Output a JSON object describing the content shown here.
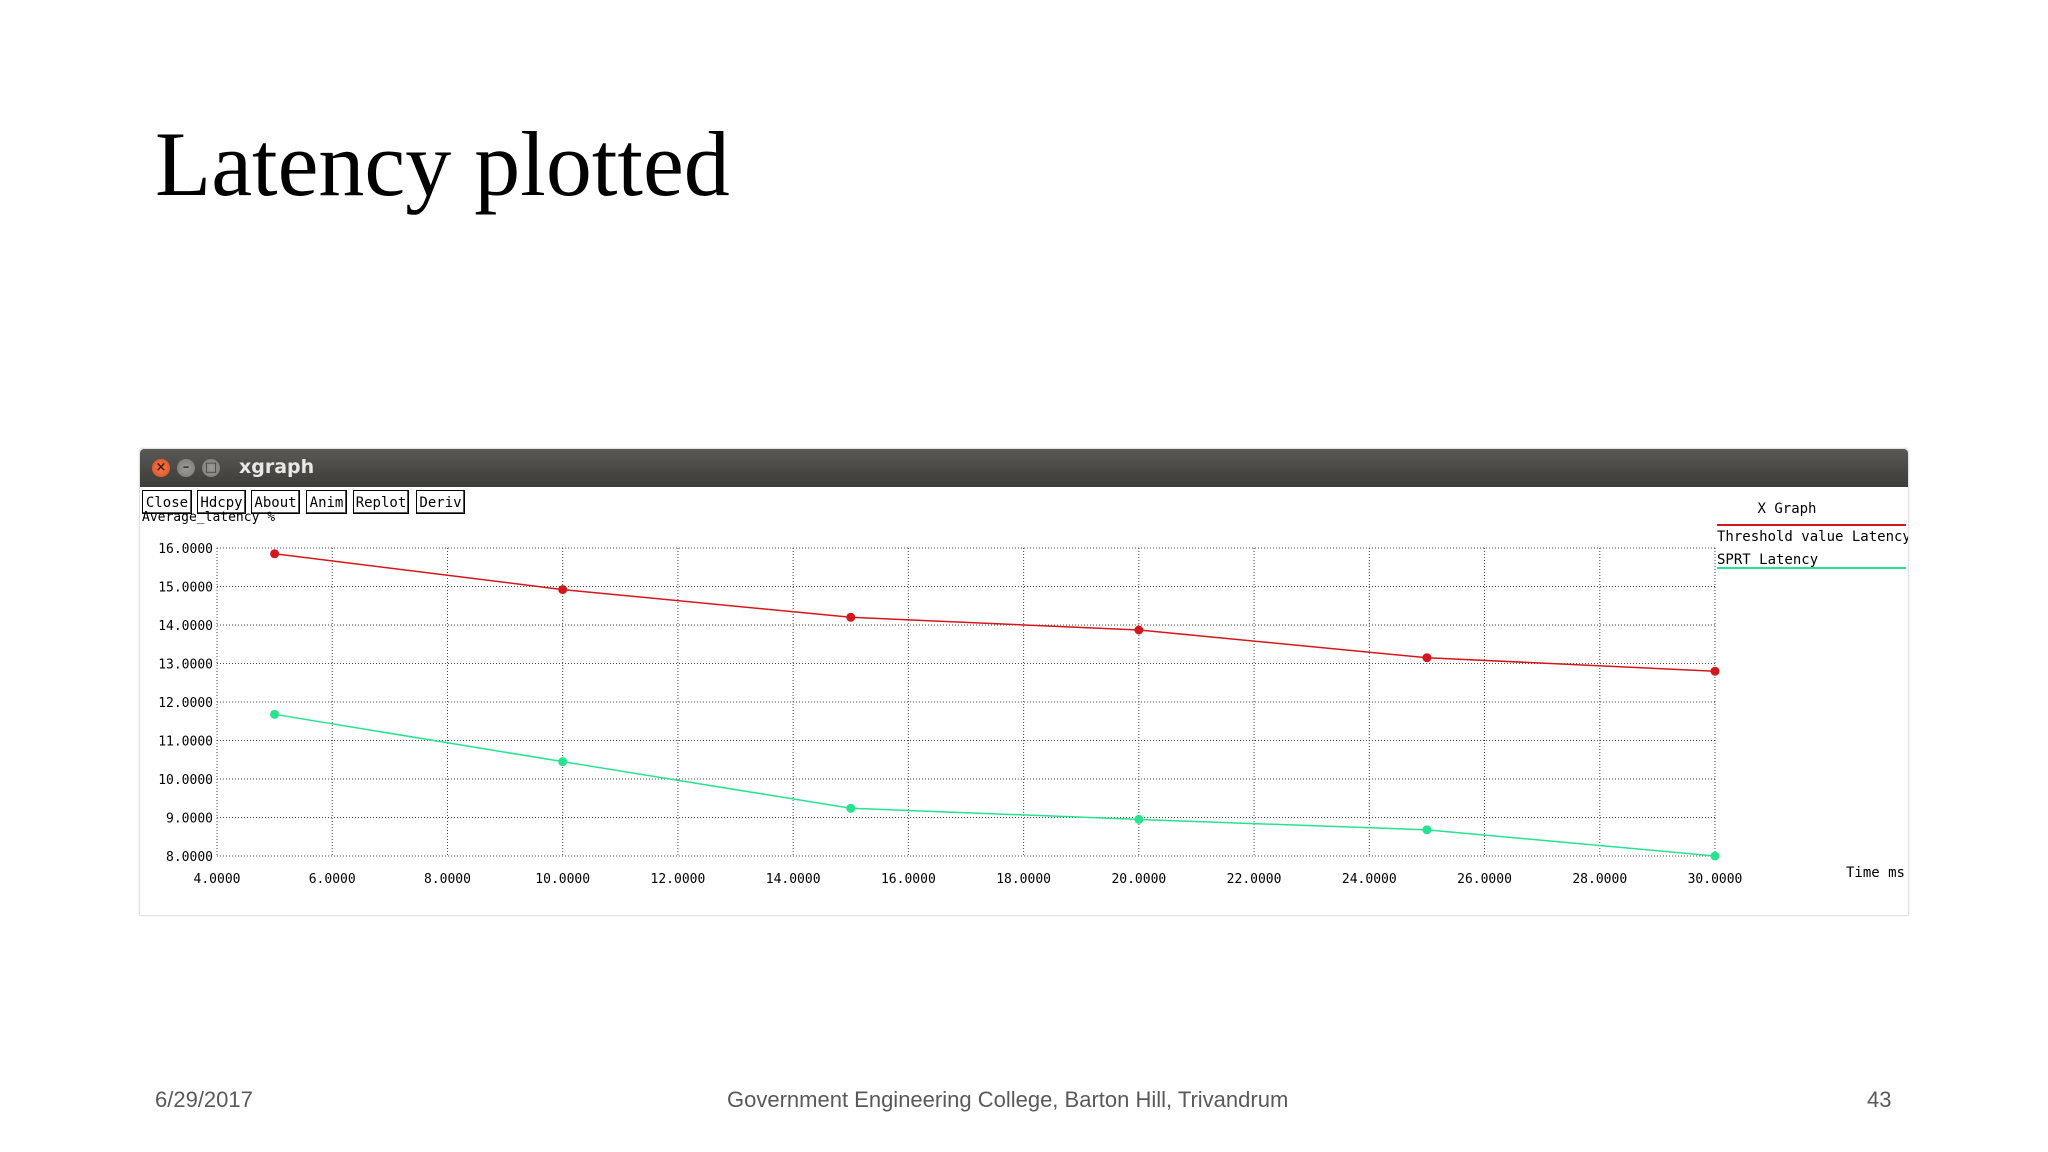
{
  "slide": {
    "title": "Latency plotted",
    "footer_date": "6/29/2017",
    "footer_center": "Government  Engineering College, Barton Hill, Trivandrum",
    "footer_page": "43"
  },
  "window": {
    "title": "xgraph",
    "buttons": [
      "Close",
      "Hdcpy",
      "About",
      "Anim",
      "Replot",
      "Deriv"
    ]
  },
  "chart_data": {
    "type": "line",
    "title": "X Graph",
    "xlabel": "Time ms",
    "ylabel": "Average_latency %",
    "xlim": [
      4,
      30
    ],
    "ylim": [
      8,
      16
    ],
    "x_ticks": [
      "4.0000",
      "6.0000",
      "8.0000",
      "10.0000",
      "12.0000",
      "14.0000",
      "16.0000",
      "18.0000",
      "20.0000",
      "22.0000",
      "24.0000",
      "26.0000",
      "28.0000",
      "30.0000"
    ],
    "y_ticks": [
      "8.0000",
      "9.0000",
      "10.0000",
      "11.0000",
      "12.0000",
      "13.0000",
      "14.0000",
      "15.0000",
      "16.0000"
    ],
    "grid": true,
    "legend_position": "top-right",
    "x": [
      5,
      10,
      15,
      20,
      25,
      30
    ],
    "series": [
      {
        "name": "Threshold value Latency",
        "color": "#d4171c",
        "values": [
          15.85,
          14.92,
          14.2,
          13.87,
          13.15,
          12.8
        ]
      },
      {
        "name": "SPRT_Latency",
        "color": "#27e290",
        "values": [
          11.68,
          10.45,
          9.24,
          8.95,
          8.68,
          8.0
        ]
      }
    ]
  }
}
